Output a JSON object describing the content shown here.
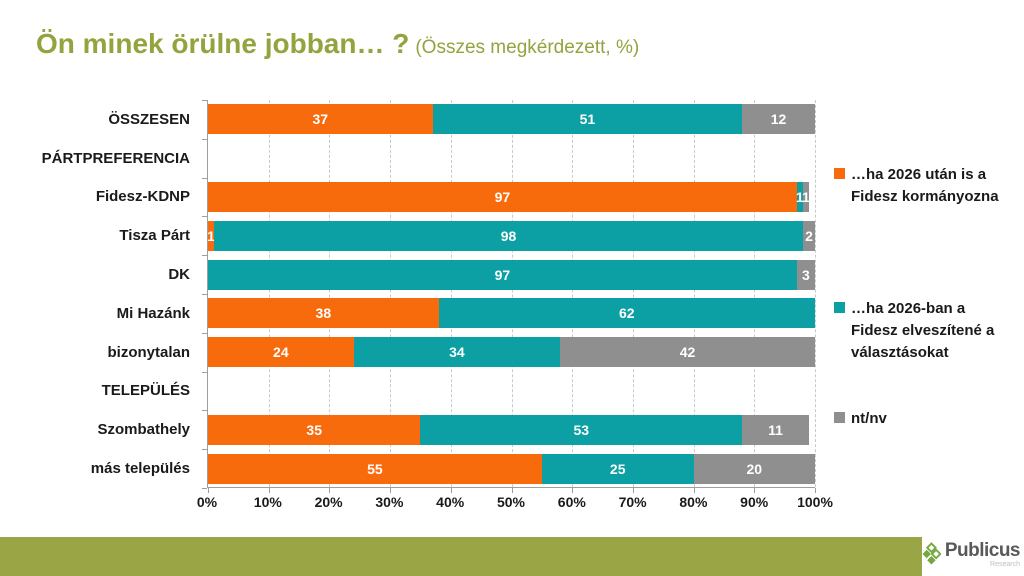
{
  "title": {
    "main": "Ön minek örülne jobban… ?",
    "subtitle": "(Összes megkérdezett, %)",
    "color": "#93A33D"
  },
  "chart_data": {
    "type": "bar",
    "orientation": "horizontal",
    "stacked": true,
    "categories": [
      "ÖSSZESEN",
      "PÁRTPREFERENCIA",
      "Fidesz-KDNP",
      "Tisza Párt",
      "DK",
      "Mi Hazánk",
      "bizonytalan",
      "TELEPÜLÉS",
      "Szombathely",
      "más település"
    ],
    "header_rows": [
      1,
      7
    ],
    "series": [
      {
        "name": "…ha 2026 után is a Fidesz kormányozna",
        "color": "#F86B0D",
        "values": [
          37,
          null,
          97,
          1,
          0,
          38,
          24,
          null,
          35,
          55
        ]
      },
      {
        "name": "…ha 2026-ban a Fidesz elveszítené a választásokat",
        "color": "#0C9FA4",
        "values": [
          51,
          null,
          1,
          98,
          97,
          62,
          34,
          null,
          53,
          25
        ]
      },
      {
        "name": "nt/nv",
        "color": "#8F8F8F",
        "values": [
          12,
          null,
          1,
          2,
          3,
          0,
          42,
          null,
          11,
          20
        ]
      }
    ],
    "x_ticks": [
      "0%",
      "10%",
      "20%",
      "30%",
      "40%",
      "50%",
      "60%",
      "70%",
      "80%",
      "90%",
      "100%"
    ],
    "xlim": [
      0,
      100
    ],
    "grid": "dashed-vertical",
    "legend_position": "right",
    "value_labels": "white-bold-centered"
  },
  "footer": {
    "bar_color": "#9AA545",
    "brand": "Publicus",
    "brand_sub": "Research",
    "logo_green": "#76A73E"
  }
}
